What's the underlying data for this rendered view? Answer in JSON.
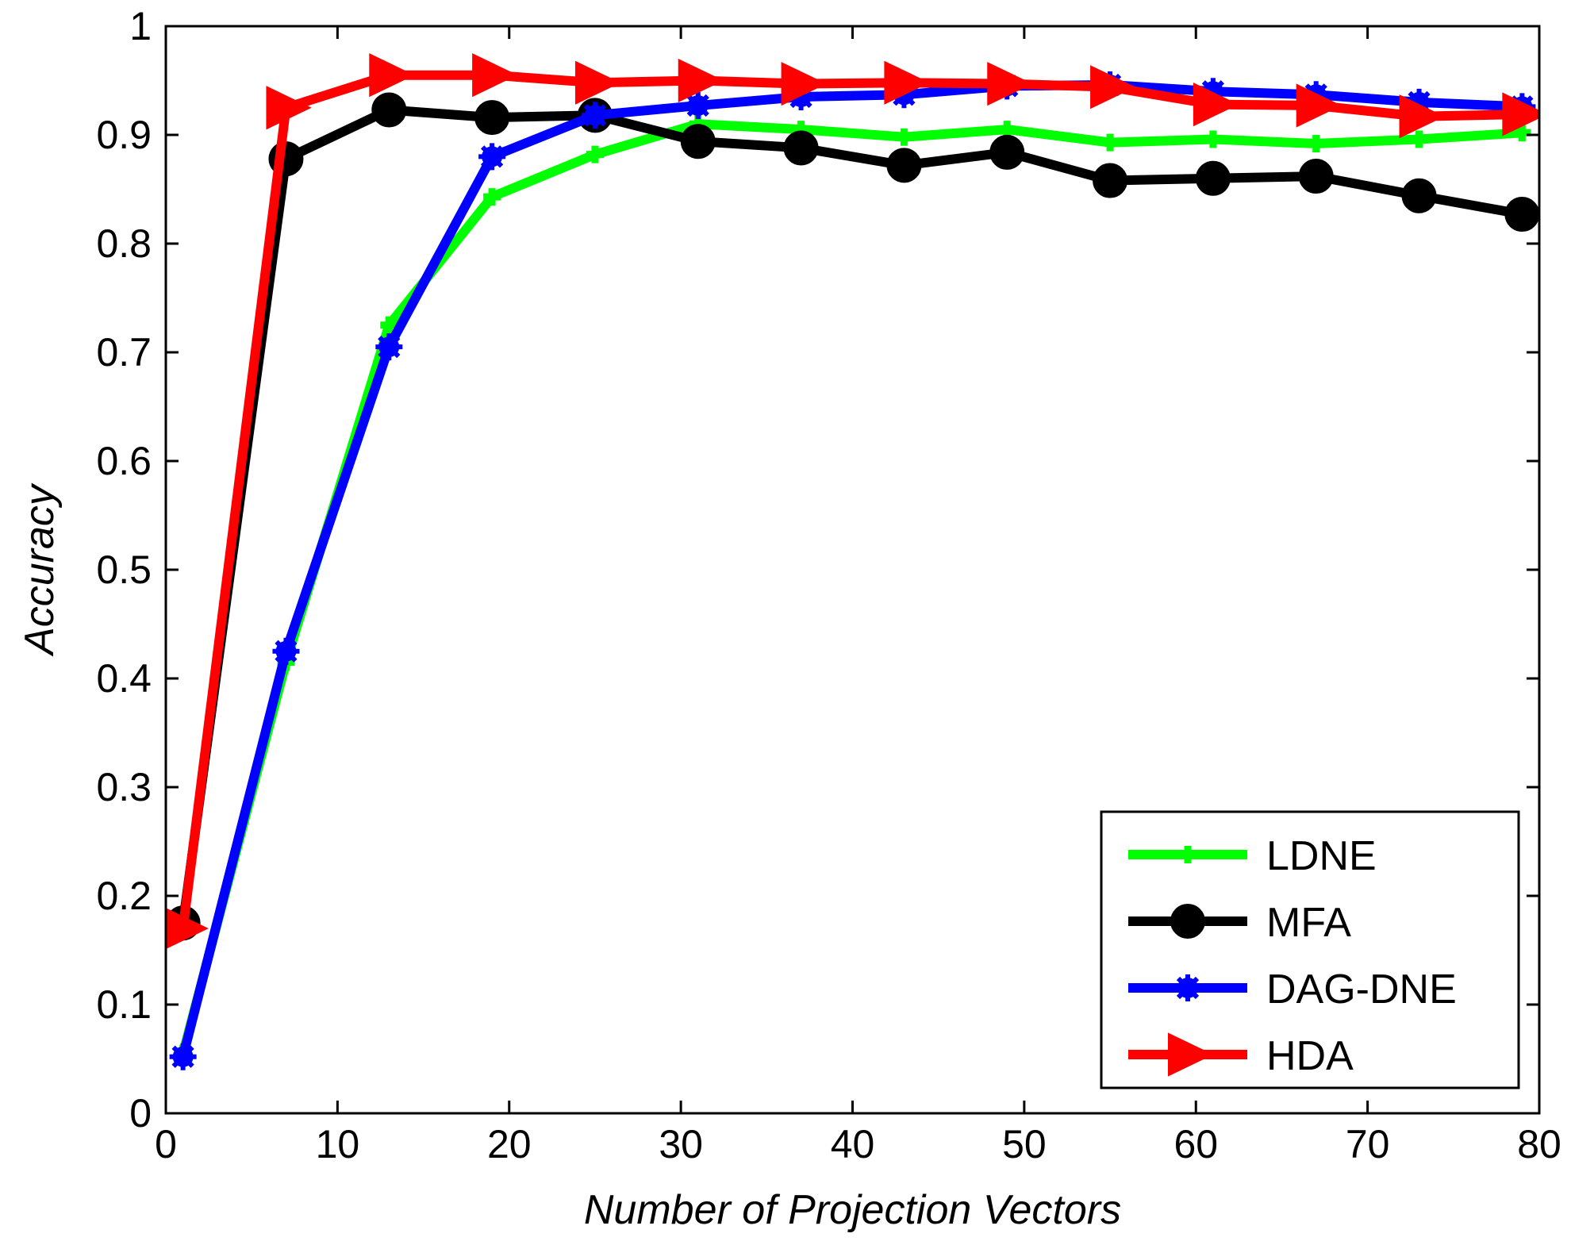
{
  "chart_data": {
    "type": "line",
    "title": "",
    "xlabel": "Number of Projection Vectors",
    "ylabel": "Accuracy",
    "xlim": [
      0,
      80
    ],
    "ylim": [
      0,
      1
    ],
    "xticks": [
      0,
      10,
      20,
      30,
      40,
      50,
      60,
      70,
      80
    ],
    "yticks": [
      0,
      0.1,
      0.2,
      0.3,
      0.4,
      0.5,
      0.6,
      0.7,
      0.8,
      0.9,
      1
    ],
    "xtick_labels": [
      "0",
      "10",
      "20",
      "30",
      "40",
      "50",
      "60",
      "70",
      "80"
    ],
    "ytick_labels": [
      "0",
      "0.1",
      "0.2",
      "0.3",
      "0.4",
      "0.5",
      "0.6",
      "0.7",
      "0.8",
      "0.9",
      "1"
    ],
    "grid": false,
    "legend_position": "bottom-right",
    "x": [
      1,
      7,
      13,
      19,
      25,
      31,
      37,
      43,
      49,
      55,
      61,
      67,
      73,
      79
    ],
    "series": [
      {
        "name": "LDNE",
        "color": "#00ff00",
        "marker": "plus",
        "values": [
          0.055,
          0.415,
          0.725,
          0.843,
          0.882,
          0.91,
          0.905,
          0.898,
          0.905,
          0.893,
          0.896,
          0.892,
          0.896,
          0.902
        ]
      },
      {
        "name": "MFA",
        "color": "#000000",
        "marker": "circle",
        "values": [
          0.175,
          0.878,
          0.923,
          0.916,
          0.918,
          0.894,
          0.888,
          0.872,
          0.884,
          0.858,
          0.86,
          0.862,
          0.844,
          0.827
        ]
      },
      {
        "name": "DAG-DNE",
        "color": "#0000ff",
        "marker": "star",
        "values": [
          0.052,
          0.425,
          0.705,
          0.88,
          0.918,
          0.927,
          0.935,
          0.937,
          0.945,
          0.946,
          0.94,
          0.937,
          0.93,
          0.926
        ]
      },
      {
        "name": "HDA",
        "color": "#ff0000",
        "marker": "triangle-right",
        "values": [
          0.17,
          0.925,
          0.955,
          0.955,
          0.948,
          0.95,
          0.947,
          0.948,
          0.947,
          0.944,
          0.928,
          0.927,
          0.917,
          0.919
        ]
      }
    ]
  }
}
